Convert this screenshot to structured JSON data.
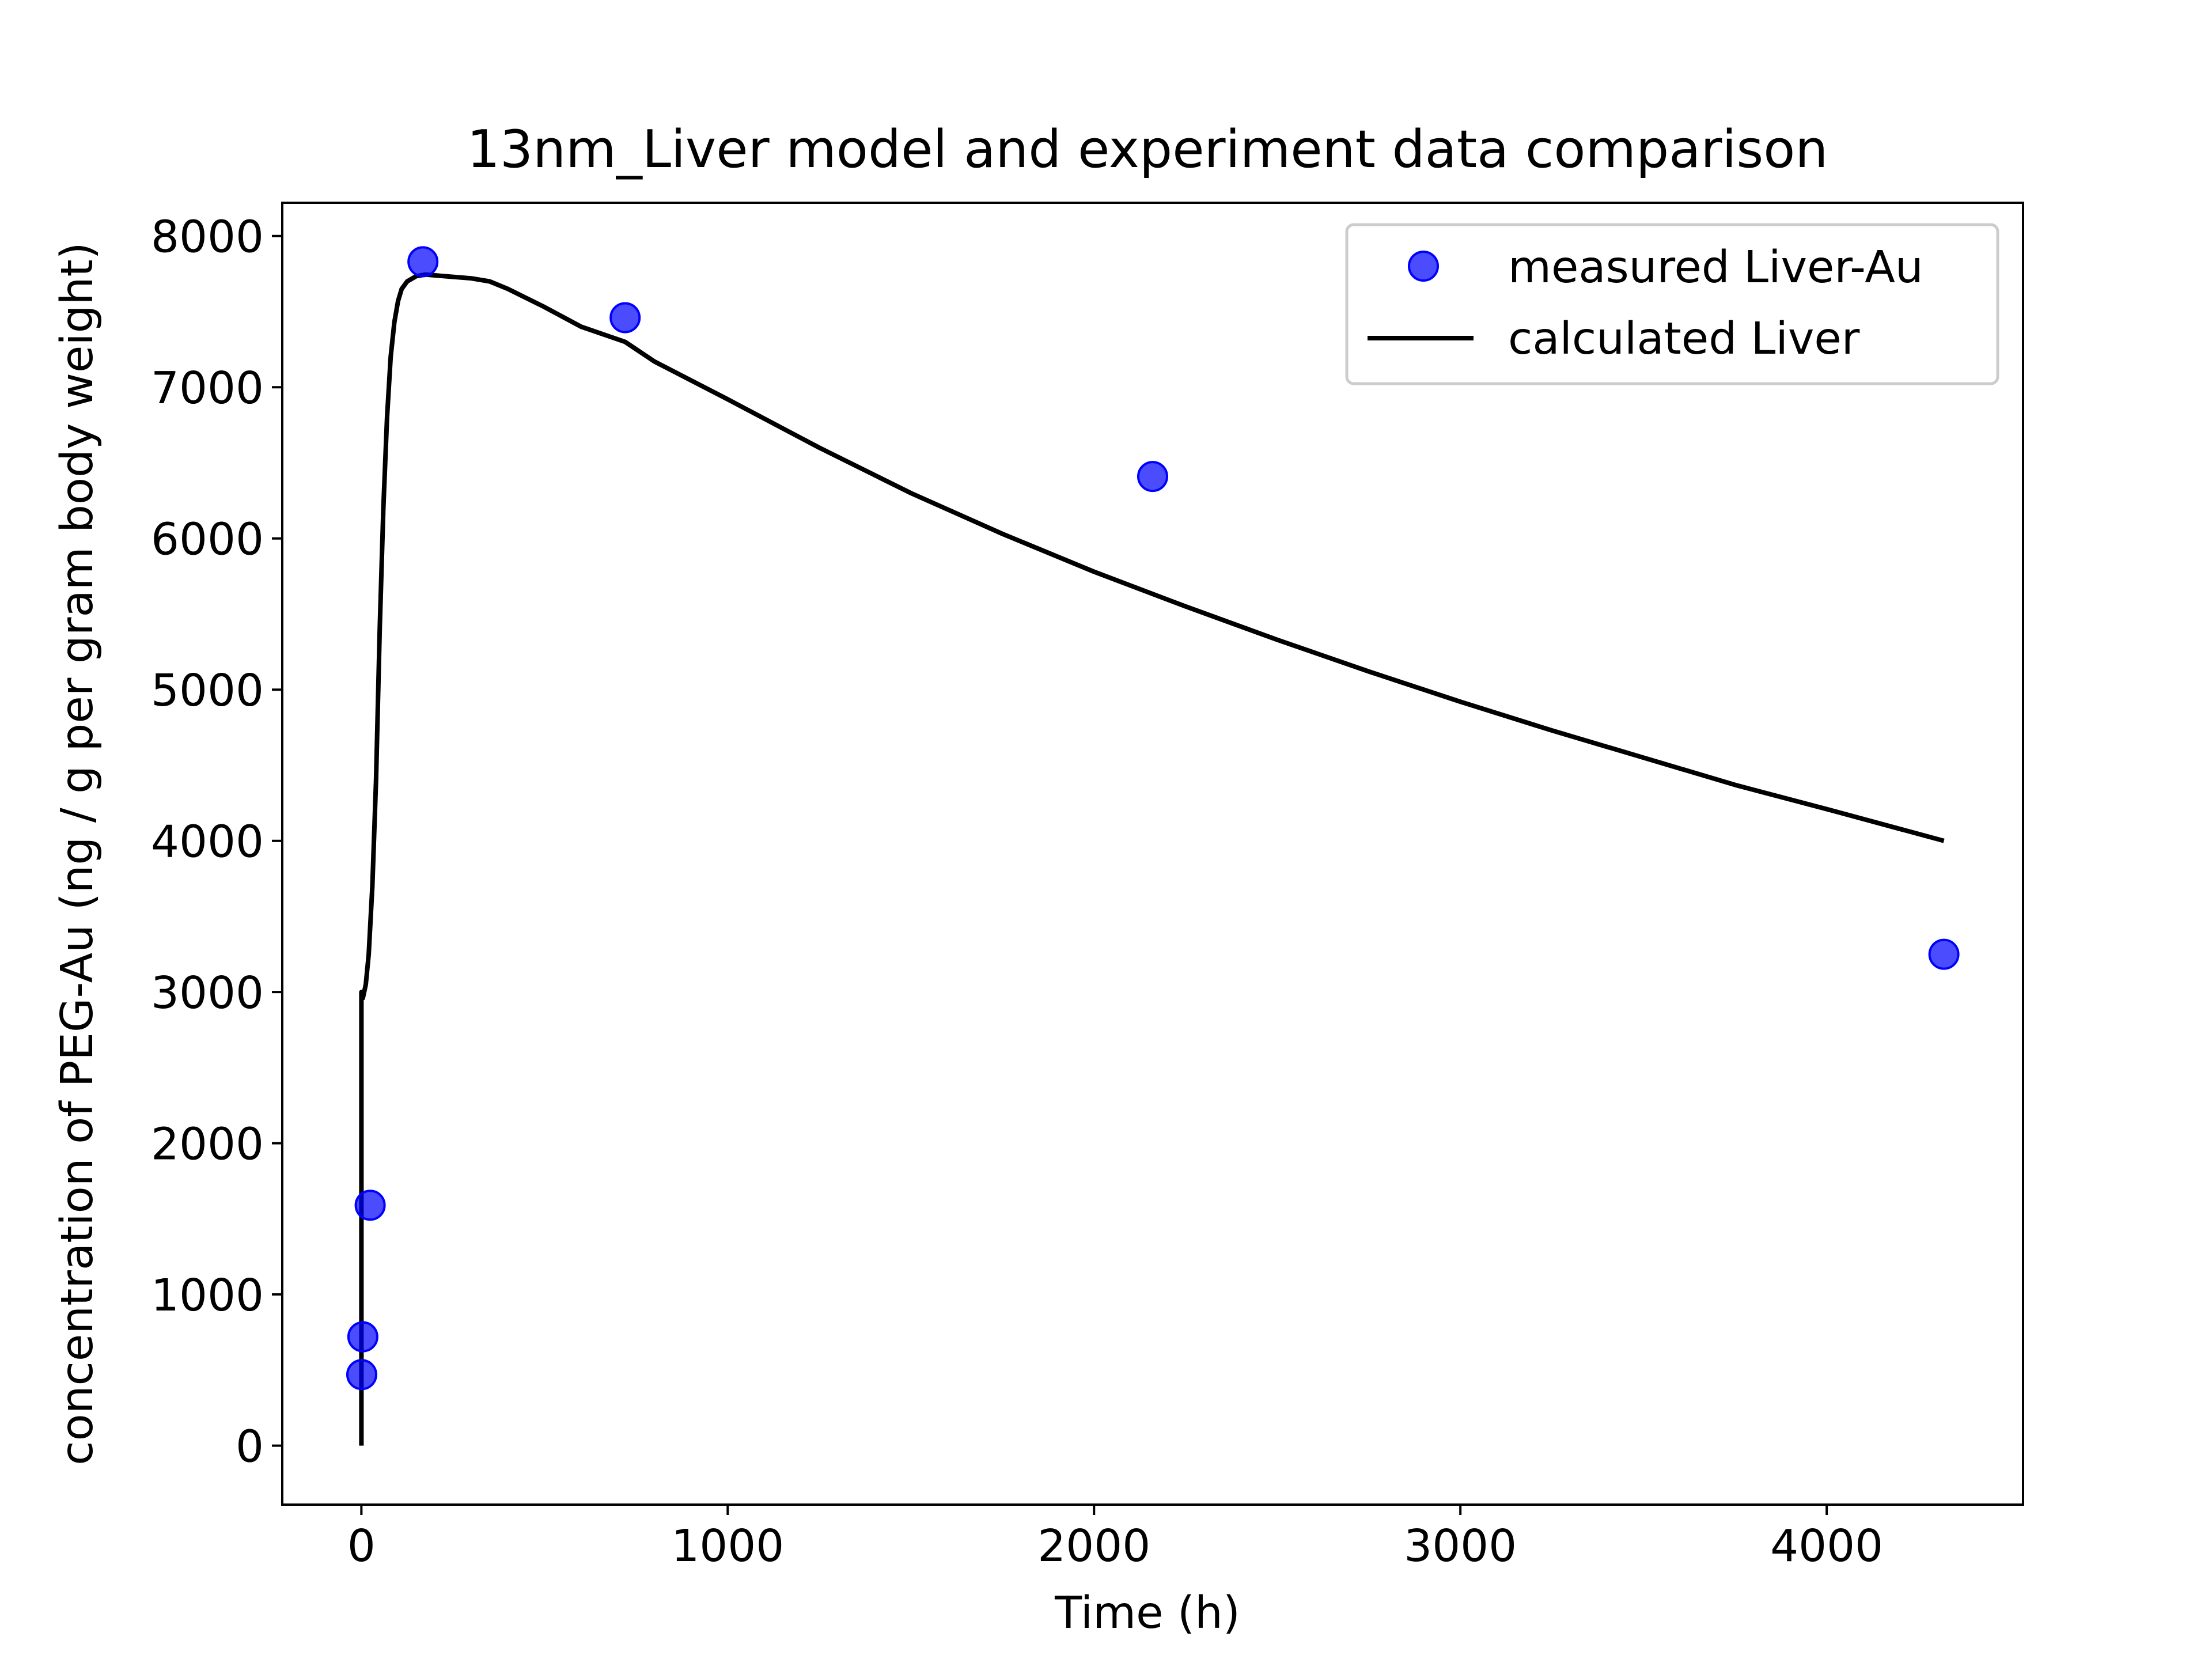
{
  "chart_data": {
    "type": "scatter",
    "title": "13nm_Liver model and experiment data comparison",
    "xlabel": "Time (h)",
    "ylabel": "concentration of PEG-Au (ng / g per gram body weight)",
    "xlim": [
      -216,
      4536
    ],
    "ylim": [
      -390,
      8220
    ],
    "xticks": [
      0,
      1000,
      2000,
      3000,
      4000
    ],
    "yticks": [
      0,
      1000,
      2000,
      3000,
      4000,
      5000,
      6000,
      7000,
      8000
    ],
    "xtick_labels": [
      "0",
      "1000",
      "2000",
      "3000",
      "4000"
    ],
    "ytick_labels": [
      "0",
      "1000",
      "2000",
      "3000",
      "4000",
      "5000",
      "6000",
      "7000",
      "8000"
    ],
    "grid": false,
    "legend_position": "upper right",
    "series": [
      {
        "name": "measured Liver-Au",
        "kind": "scatter",
        "color": "#0000ff",
        "x": [
          1,
          4,
          24,
          168,
          720,
          2160,
          4320
        ],
        "y": [
          470,
          720,
          1590,
          7830,
          7460,
          6410,
          3250
        ]
      },
      {
        "name": "calculated Liver",
        "kind": "line",
        "color": "#000000",
        "x": [
          0,
          0,
          4,
          12,
          20,
          30,
          40,
          50,
          60,
          70,
          80,
          90,
          100,
          110,
          125,
          150,
          175,
          200,
          250,
          300,
          350,
          400,
          500,
          600,
          720,
          800,
          1000,
          1250,
          1500,
          1750,
          2000,
          2250,
          2500,
          2750,
          3000,
          3250,
          3500,
          3750,
          4000,
          4320
        ],
        "y": [
          0,
          3000,
          2960,
          3050,
          3250,
          3700,
          4400,
          5400,
          6200,
          6800,
          7200,
          7430,
          7570,
          7650,
          7700,
          7735,
          7745,
          7740,
          7730,
          7720,
          7700,
          7650,
          7530,
          7400,
          7300,
          7170,
          6920,
          6600,
          6300,
          6030,
          5780,
          5550,
          5330,
          5120,
          4920,
          4730,
          4550,
          4370,
          4210,
          4000
        ]
      }
    ]
  }
}
